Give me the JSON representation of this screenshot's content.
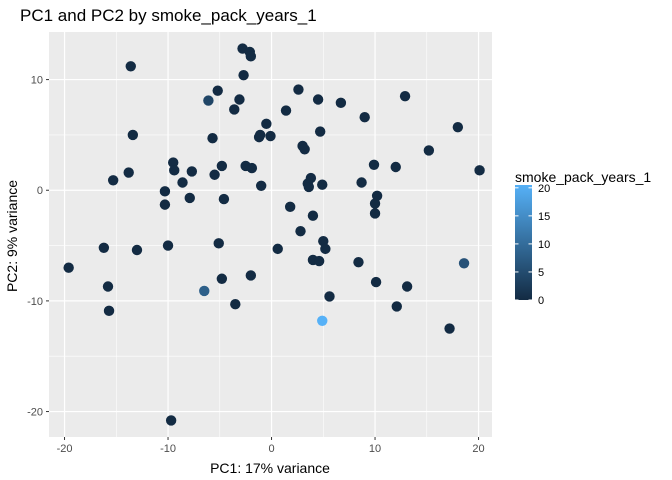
{
  "chart_data": {
    "type": "scatter",
    "title": "PC1 and PC2 by smoke_pack_years_1",
    "xlabel": "PC1: 17% variance",
    "ylabel": "PC2: 9% variance",
    "xlim": [
      -21.5,
      21.3
    ],
    "ylim": [
      -22.3,
      14.3
    ],
    "x_ticks": [
      -20,
      -10,
      0,
      10,
      20
    ],
    "y_ticks": [
      -20,
      -10,
      0,
      10
    ],
    "grid": true,
    "legend": {
      "title": "smoke_pack_years_1",
      "placement": "right",
      "ticks": [
        0,
        5,
        10,
        15,
        20
      ],
      "color_low": "#132b43",
      "color_high": "#56b1f7",
      "range": [
        0,
        20.5
      ]
    },
    "points": [
      {
        "x": -19.6,
        "y": -7.0,
        "c": 0
      },
      {
        "x": -16.2,
        "y": -5.2,
        "c": 0
      },
      {
        "x": -15.8,
        "y": -8.7,
        "c": 0
      },
      {
        "x": -15.7,
        "y": -10.9,
        "c": 0
      },
      {
        "x": -15.3,
        "y": 0.9,
        "c": 0
      },
      {
        "x": -13.8,
        "y": 1.6,
        "c": 0
      },
      {
        "x": -13.6,
        "y": 11.2,
        "c": 0
      },
      {
        "x": -13.4,
        "y": 5.0,
        "c": 0
      },
      {
        "x": -13.0,
        "y": -5.4,
        "c": 0
      },
      {
        "x": -10.3,
        "y": -0.1,
        "c": 0
      },
      {
        "x": -10.3,
        "y": -1.3,
        "c": 0
      },
      {
        "x": -10.0,
        "y": -5.0,
        "c": 0
      },
      {
        "x": -9.5,
        "y": 2.5,
        "c": 0
      },
      {
        "x": -9.4,
        "y": 1.8,
        "c": 0
      },
      {
        "x": -9.7,
        "y": -20.8,
        "c": 0
      },
      {
        "x": -8.6,
        "y": 0.7,
        "c": 0
      },
      {
        "x": -7.9,
        "y": -0.7,
        "c": 0
      },
      {
        "x": -7.7,
        "y": 1.7,
        "c": 0
      },
      {
        "x": -6.5,
        "y": -9.1,
        "c": 8
      },
      {
        "x": -6.1,
        "y": 8.1,
        "c": 4
      },
      {
        "x": -5.7,
        "y": 4.7,
        "c": 0
      },
      {
        "x": -5.5,
        "y": 1.4,
        "c": 0
      },
      {
        "x": -5.2,
        "y": 9.0,
        "c": 0
      },
      {
        "x": -5.1,
        "y": -4.8,
        "c": 0
      },
      {
        "x": -4.8,
        "y": 2.2,
        "c": 0
      },
      {
        "x": -4.8,
        "y": -8.0,
        "c": 0
      },
      {
        "x": -4.6,
        "y": -0.8,
        "c": 0
      },
      {
        "x": -3.6,
        "y": 7.3,
        "c": 0
      },
      {
        "x": -3.5,
        "y": -10.3,
        "c": 0
      },
      {
        "x": -3.1,
        "y": 8.2,
        "c": 0
      },
      {
        "x": -2.8,
        "y": 12.8,
        "c": 0
      },
      {
        "x": -2.7,
        "y": 10.4,
        "c": 0
      },
      {
        "x": -2.5,
        "y": 2.2,
        "c": 0
      },
      {
        "x": -2.1,
        "y": 12.5,
        "c": 0
      },
      {
        "x": -2.0,
        "y": 12.1,
        "c": 0
      },
      {
        "x": -2.0,
        "y": -7.7,
        "c": 0
      },
      {
        "x": -1.9,
        "y": 2.0,
        "c": 0
      },
      {
        "x": -1.2,
        "y": 4.8,
        "c": 0
      },
      {
        "x": -1.1,
        "y": 5.0,
        "c": 0
      },
      {
        "x": -1.0,
        "y": 0.4,
        "c": 0
      },
      {
        "x": -0.5,
        "y": 6.0,
        "c": 0
      },
      {
        "x": -0.1,
        "y": 4.9,
        "c": 0
      },
      {
        "x": 0.6,
        "y": -5.3,
        "c": 0
      },
      {
        "x": 1.4,
        "y": 7.2,
        "c": 0
      },
      {
        "x": 1.8,
        "y": -1.5,
        "c": 0
      },
      {
        "x": 2.6,
        "y": 9.1,
        "c": 0
      },
      {
        "x": 2.8,
        "y": -3.7,
        "c": 0
      },
      {
        "x": 3.0,
        "y": 4.0,
        "c": 0
      },
      {
        "x": 3.2,
        "y": 3.7,
        "c": 0
      },
      {
        "x": 3.5,
        "y": 0.6,
        "c": 0
      },
      {
        "x": 3.6,
        "y": 0.3,
        "c": 0
      },
      {
        "x": 3.8,
        "y": 1.1,
        "c": 0
      },
      {
        "x": 4.0,
        "y": -2.3,
        "c": 0
      },
      {
        "x": 4.0,
        "y": -6.3,
        "c": 0
      },
      {
        "x": 4.5,
        "y": 8.2,
        "c": 0
      },
      {
        "x": 4.6,
        "y": -6.4,
        "c": 0
      },
      {
        "x": 4.7,
        "y": 5.3,
        "c": 0
      },
      {
        "x": 4.9,
        "y": 0.5,
        "c": 0
      },
      {
        "x": 5.0,
        "y": -4.6,
        "c": 0
      },
      {
        "x": 5.2,
        "y": -5.3,
        "c": 0
      },
      {
        "x": 4.9,
        "y": -11.8,
        "c": 20.5
      },
      {
        "x": 5.6,
        "y": -9.6,
        "c": 0
      },
      {
        "x": 6.7,
        "y": 7.9,
        "c": 0
      },
      {
        "x": 8.4,
        "y": -6.5,
        "c": 0
      },
      {
        "x": 8.7,
        "y": 0.7,
        "c": 0
      },
      {
        "x": 9.0,
        "y": 6.6,
        "c": 0
      },
      {
        "x": 9.9,
        "y": 2.3,
        "c": 0
      },
      {
        "x": 10.0,
        "y": -1.2,
        "c": 0
      },
      {
        "x": 10.0,
        "y": -2.1,
        "c": 0
      },
      {
        "x": 10.2,
        "y": -0.5,
        "c": 0
      },
      {
        "x": 10.1,
        "y": -8.3,
        "c": 0
      },
      {
        "x": 12.0,
        "y": 2.1,
        "c": 0
      },
      {
        "x": 12.1,
        "y": -10.5,
        "c": 0
      },
      {
        "x": 12.9,
        "y": 8.5,
        "c": 0
      },
      {
        "x": 13.1,
        "y": -8.7,
        "c": 0
      },
      {
        "x": 15.2,
        "y": 3.6,
        "c": 0
      },
      {
        "x": 17.2,
        "y": -12.5,
        "c": 0
      },
      {
        "x": 18.0,
        "y": 5.7,
        "c": 0
      },
      {
        "x": 18.6,
        "y": -6.6,
        "c": 6
      },
      {
        "x": 20.1,
        "y": 1.8,
        "c": 0
      }
    ]
  }
}
